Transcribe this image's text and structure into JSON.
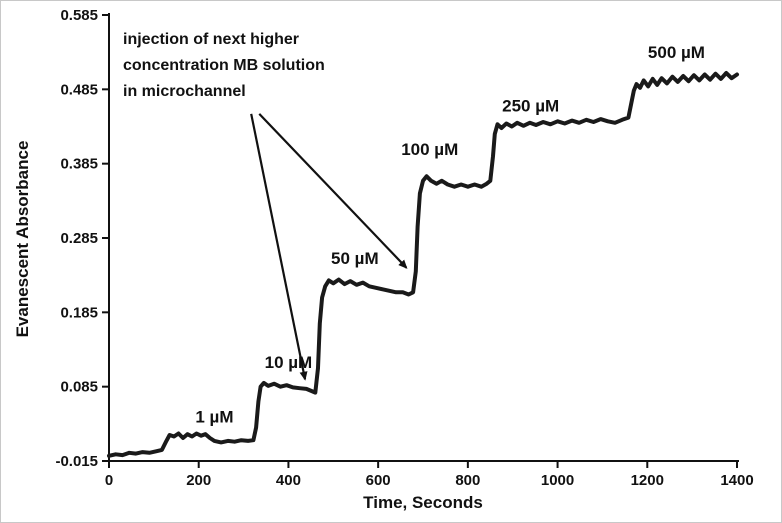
{
  "chart_data": {
    "type": "line",
    "title": "",
    "xlabel": "Time, Seconds",
    "ylabel": "Evanescent Absorbance",
    "xlim": [
      0,
      1400
    ],
    "ylim": [
      -0.015,
      0.585
    ],
    "xticks": [
      0,
      200,
      400,
      600,
      800,
      1000,
      1200,
      1400
    ],
    "yticks": [
      -0.015,
      0.085,
      0.185,
      0.285,
      0.385,
      0.485,
      0.585
    ],
    "grid": false,
    "legend": "none",
    "line_color": "#1a1a1a",
    "line_width": 4,
    "series": [
      {
        "name": "evanescent-absorbance-vs-time",
        "points": [
          [
            0,
            -0.008
          ],
          [
            15,
            -0.006
          ],
          [
            30,
            -0.007
          ],
          [
            45,
            -0.004
          ],
          [
            60,
            -0.005
          ],
          [
            75,
            -0.003
          ],
          [
            90,
            -0.004
          ],
          [
            105,
            -0.002
          ],
          [
            118,
            0.0
          ],
          [
            128,
            0.012
          ],
          [
            135,
            0.02
          ],
          [
            145,
            0.018
          ],
          [
            155,
            0.022
          ],
          [
            165,
            0.016
          ],
          [
            175,
            0.021
          ],
          [
            185,
            0.018
          ],
          [
            195,
            0.022
          ],
          [
            205,
            0.019
          ],
          [
            215,
            0.021
          ],
          [
            225,
            0.016
          ],
          [
            235,
            0.012
          ],
          [
            250,
            0.01
          ],
          [
            265,
            0.012
          ],
          [
            280,
            0.011
          ],
          [
            295,
            0.013
          ],
          [
            310,
            0.012
          ],
          [
            322,
            0.013
          ],
          [
            328,
            0.03
          ],
          [
            333,
            0.065
          ],
          [
            338,
            0.085
          ],
          [
            345,
            0.09
          ],
          [
            355,
            0.086
          ],
          [
            368,
            0.089
          ],
          [
            382,
            0.085
          ],
          [
            396,
            0.087
          ],
          [
            410,
            0.084
          ],
          [
            425,
            0.083
          ],
          [
            440,
            0.082
          ],
          [
            452,
            0.079
          ],
          [
            460,
            0.077
          ],
          [
            466,
            0.11
          ],
          [
            470,
            0.17
          ],
          [
            475,
            0.205
          ],
          [
            482,
            0.22
          ],
          [
            490,
            0.228
          ],
          [
            500,
            0.224
          ],
          [
            512,
            0.229
          ],
          [
            525,
            0.223
          ],
          [
            538,
            0.227
          ],
          [
            552,
            0.222
          ],
          [
            566,
            0.225
          ],
          [
            580,
            0.22
          ],
          [
            595,
            0.218
          ],
          [
            610,
            0.216
          ],
          [
            625,
            0.214
          ],
          [
            640,
            0.212
          ],
          [
            655,
            0.212
          ],
          [
            668,
            0.209
          ],
          [
            678,
            0.212
          ],
          [
            684,
            0.24
          ],
          [
            688,
            0.3
          ],
          [
            693,
            0.345
          ],
          [
            700,
            0.362
          ],
          [
            708,
            0.368
          ],
          [
            718,
            0.362
          ],
          [
            730,
            0.358
          ],
          [
            742,
            0.362
          ],
          [
            755,
            0.357
          ],
          [
            770,
            0.354
          ],
          [
            785,
            0.357
          ],
          [
            800,
            0.354
          ],
          [
            815,
            0.357
          ],
          [
            830,
            0.354
          ],
          [
            842,
            0.358
          ],
          [
            850,
            0.362
          ],
          [
            856,
            0.395
          ],
          [
            860,
            0.425
          ],
          [
            866,
            0.438
          ],
          [
            875,
            0.433
          ],
          [
            886,
            0.439
          ],
          [
            898,
            0.435
          ],
          [
            910,
            0.44
          ],
          [
            924,
            0.436
          ],
          [
            938,
            0.44
          ],
          [
            952,
            0.437
          ],
          [
            968,
            0.441
          ],
          [
            984,
            0.438
          ],
          [
            1000,
            0.442
          ],
          [
            1016,
            0.439
          ],
          [
            1032,
            0.443
          ],
          [
            1048,
            0.44
          ],
          [
            1064,
            0.444
          ],
          [
            1080,
            0.441
          ],
          [
            1096,
            0.445
          ],
          [
            1112,
            0.442
          ],
          [
            1128,
            0.44
          ],
          [
            1144,
            0.444
          ],
          [
            1158,
            0.447
          ],
          [
            1164,
            0.465
          ],
          [
            1170,
            0.483
          ],
          [
            1176,
            0.492
          ],
          [
            1184,
            0.487
          ],
          [
            1192,
            0.497
          ],
          [
            1202,
            0.489
          ],
          [
            1212,
            0.499
          ],
          [
            1222,
            0.491
          ],
          [
            1232,
            0.5
          ],
          [
            1244,
            0.493
          ],
          [
            1256,
            0.502
          ],
          [
            1268,
            0.495
          ],
          [
            1280,
            0.503
          ],
          [
            1292,
            0.496
          ],
          [
            1304,
            0.504
          ],
          [
            1316,
            0.497
          ],
          [
            1328,
            0.505
          ],
          [
            1340,
            0.498
          ],
          [
            1352,
            0.506
          ],
          [
            1364,
            0.499
          ],
          [
            1376,
            0.507
          ],
          [
            1388,
            0.5
          ],
          [
            1400,
            0.505
          ]
        ]
      }
    ],
    "point_labels": [
      {
        "text": "1 µM",
        "x": 235,
        "y": 0.045
      },
      {
        "text": "10 µM",
        "x": 400,
        "y": 0.118
      },
      {
        "text": "50 µM",
        "x": 548,
        "y": 0.258
      },
      {
        "text": "100 µM",
        "x": 715,
        "y": 0.405
      },
      {
        "text": "250 µM",
        "x": 940,
        "y": 0.463
      },
      {
        "text": "500 µM",
        "x": 1265,
        "y": 0.535
      }
    ],
    "annotation": {
      "lines": [
        "injection of next higher",
        "concentration MB solution",
        "in microchannel"
      ],
      "arrows": [
        {
          "from": [
            317,
            0.452
          ],
          "to": [
            437,
            0.095
          ]
        },
        {
          "from": [
            335,
            0.452
          ],
          "to": [
            663,
            0.245
          ]
        }
      ]
    }
  }
}
